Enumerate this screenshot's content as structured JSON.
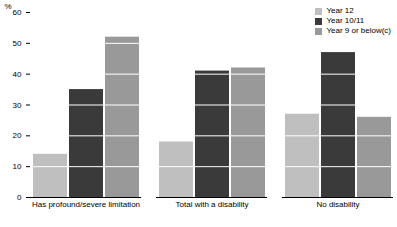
{
  "chart_data": {
    "type": "bar",
    "y_label": "%",
    "categories": [
      "Has profound/severe limitation",
      "Total with a disability",
      "No disability"
    ],
    "series": [
      {
        "name": "Year 12",
        "color": "#bfbfbf",
        "values": [
          14,
          18,
          27
        ]
      },
      {
        "name": "Year 10/11",
        "color": "#3a3a3a",
        "values": [
          35,
          41,
          47
        ]
      },
      {
        "name": "Year 9 or below(c)",
        "color": "#999999",
        "values": [
          52,
          42,
          26
        ]
      }
    ],
    "ylim": [
      0,
      60
    ],
    "yticks": [
      0,
      10,
      20,
      30,
      40,
      50,
      60
    ],
    "grid": true,
    "legend": "top-right"
  }
}
